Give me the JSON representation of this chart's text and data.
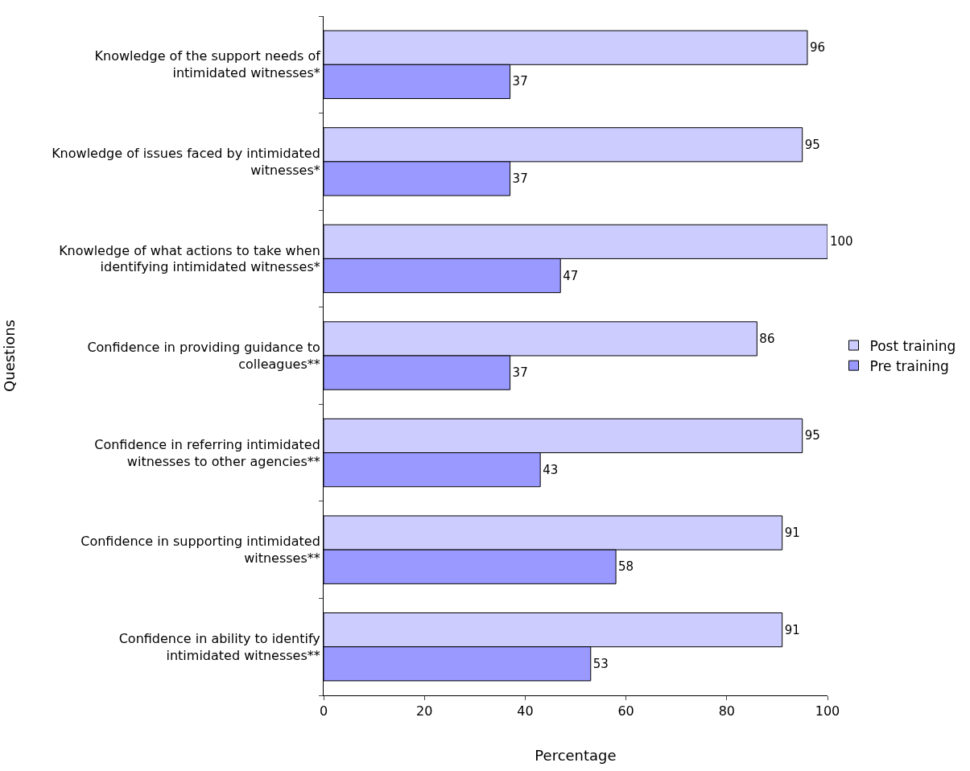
{
  "chart_data": {
    "type": "bar",
    "orientation": "horizontal",
    "xlabel": "Percentage",
    "ylabel": "Questions",
    "categories": [
      "Knowledge of the support needs of intimidated witnesses*",
      "Knowledge of issues faced by intimidated witnesses*",
      "Knowledge of what actions to take when identifying intimidated witnesses*",
      "Confidence in providing guidance to colleagues**",
      "Confidence in referring intimidated witnesses to other agencies**",
      "Confidence in supporting intimidated witnesses**",
      "Confidence in ability to identify intimidated witnesses**"
    ],
    "series": [
      {
        "name": "Post training",
        "color": "#ccccff",
        "values": [
          96,
          95,
          100,
          86,
          95,
          91,
          91
        ]
      },
      {
        "name": "Pre training",
        "color": "#9999ff",
        "values": [
          37,
          37,
          47,
          37,
          43,
          58,
          53
        ]
      }
    ],
    "xlim": [
      0,
      100
    ],
    "xticks": [
      0,
      20,
      40,
      60,
      80,
      100
    ],
    "data_labels": true,
    "legend": "right"
  }
}
